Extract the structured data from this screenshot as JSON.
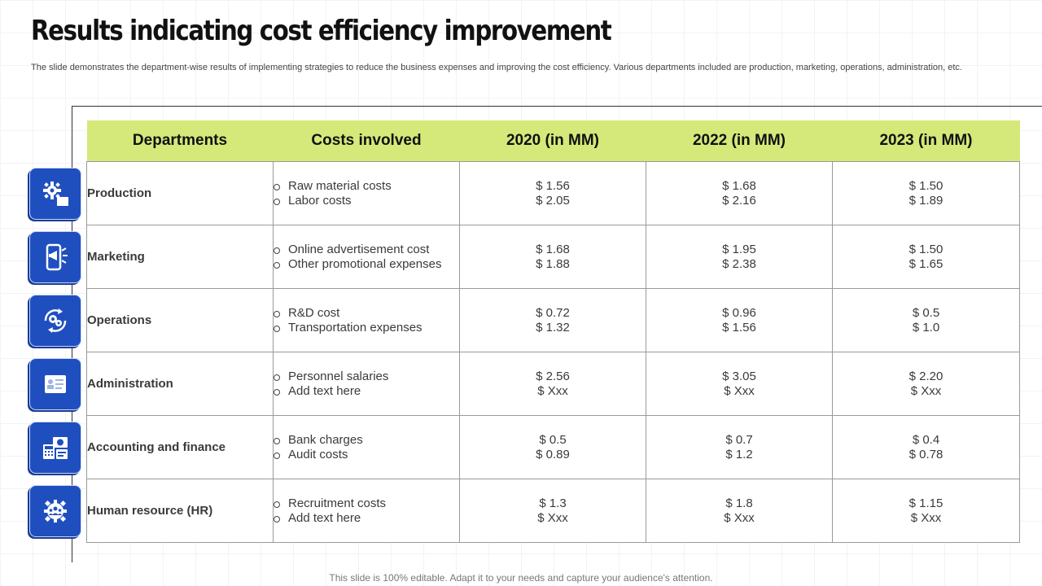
{
  "title": "Results indicating cost efficiency improvement",
  "subtitle": "The slide demonstrates the department-wise results of implementing strategies to reduce the business expenses and improving the cost efficiency. Various departments included are production, marketing, operations, administration, etc.",
  "table": {
    "headers": [
      "Departments",
      "Costs involved",
      "2020 (in MM)",
      "2022 (in MM)",
      "2023 (in MM)"
    ],
    "rows": [
      {
        "department": "Production",
        "costs": [
          "Raw material costs",
          "Labor costs"
        ],
        "y2020": [
          "$ 1.56",
          "$ 2.05"
        ],
        "y2022": [
          "$ 1.68",
          "$ 2.16"
        ],
        "y2023": [
          "$ 1.50",
          "$ 1.89"
        ]
      },
      {
        "department": "Marketing",
        "costs": [
          "Online advertisement cost",
          "Other promotional expenses"
        ],
        "y2020": [
          "$ 1.68",
          "$ 1.88"
        ],
        "y2022": [
          "$ 1.95",
          "$ 2.38"
        ],
        "y2023": [
          "$ 1.50",
          "$ 1.65"
        ]
      },
      {
        "department": "Operations",
        "costs": [
          "R&D cost",
          "Transportation expenses"
        ],
        "y2020": [
          "$ 0.72",
          "$ 1.32"
        ],
        "y2022": [
          "$ 0.96",
          "$ 1.56"
        ],
        "y2023": [
          "$ 0.5",
          "$ 1.0"
        ]
      },
      {
        "department": "Administration",
        "costs": [
          "Personnel salaries",
          "Add text here"
        ],
        "y2020": [
          "$ 2.56",
          "$ Xxx"
        ],
        "y2022": [
          "$ 3.05",
          "$ Xxx"
        ],
        "y2023": [
          "$ 2.20",
          "$ Xxx"
        ]
      },
      {
        "department": "Accounting and finance",
        "costs": [
          "Bank charges",
          "Audit costs"
        ],
        "y2020": [
          "$ 0.5",
          "$ 0.89"
        ],
        "y2022": [
          "$ 0.7",
          "$ 1.2"
        ],
        "y2023": [
          "$ 0.4",
          "$ 0.78"
        ]
      },
      {
        "department": "Human resource (HR)",
        "costs": [
          "Recruitment costs",
          "Add text here"
        ],
        "y2020": [
          "$ 1.3",
          "$ Xxx"
        ],
        "y2022": [
          "$ 1.8",
          "$ Xxx"
        ],
        "y2023": [
          "$ 1.15",
          "$ Xxx"
        ]
      }
    ]
  },
  "icons": [
    "production-gear-icon",
    "marketing-phone-megaphone-icon",
    "operations-cycle-gears-icon",
    "administration-id-card-icon",
    "accounting-finance-icon",
    "hr-people-gear-icon"
  ],
  "colors": {
    "header_fill": "#d4e97a",
    "icon_fill": "#1f4fbf"
  },
  "footer": "This slide is 100% editable. Adapt it to your needs and capture your audience's attention."
}
